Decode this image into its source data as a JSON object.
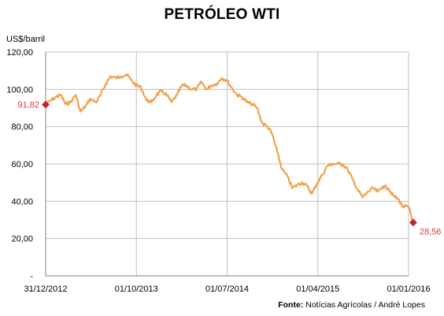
{
  "chart_data": {
    "type": "line",
    "title": "PETRÓLEO WTI",
    "ylabel": "US$/barril",
    "source_prefix": "Fonte:",
    "source_text": "Notícias Agrícolas / André Lopes",
    "ylim": [
      0,
      120
    ],
    "y_ticks": [
      "-",
      "20,00",
      "40,00",
      "60,00",
      "80,00",
      "100,00",
      "120,00"
    ],
    "x_ticks": [
      "31/12/2012",
      "01/10/2013",
      "01/07/2014",
      "01/04/2015",
      "01/01/2016"
    ],
    "grid": true,
    "series": [
      {
        "color": "#f4a04a",
        "x": [
          "2012-12-31",
          "2013-01-15",
          "2013-02-01",
          "2013-02-15",
          "2013-03-01",
          "2013-03-15",
          "2013-04-01",
          "2013-04-15",
          "2013-05-01",
          "2013-05-15",
          "2013-06-01",
          "2013-06-15",
          "2013-07-01",
          "2013-07-15",
          "2013-08-01",
          "2013-08-15",
          "2013-09-01",
          "2013-09-15",
          "2013-10-01",
          "2013-10-15",
          "2013-11-01",
          "2013-11-15",
          "2013-12-01",
          "2013-12-15",
          "2014-01-01",
          "2014-01-15",
          "2014-02-01",
          "2014-02-15",
          "2014-03-01",
          "2014-03-15",
          "2014-04-01",
          "2014-04-15",
          "2014-05-01",
          "2014-05-15",
          "2014-06-01",
          "2014-06-15",
          "2014-07-01",
          "2014-07-15",
          "2014-08-01",
          "2014-08-15",
          "2014-09-01",
          "2014-09-15",
          "2014-10-01",
          "2014-10-15",
          "2014-11-01",
          "2014-11-15",
          "2014-12-01",
          "2014-12-15",
          "2015-01-01",
          "2015-01-15",
          "2015-02-01",
          "2015-02-15",
          "2015-03-01",
          "2015-03-15",
          "2015-04-01",
          "2015-04-15",
          "2015-05-01",
          "2015-05-15",
          "2015-06-01",
          "2015-06-15",
          "2015-07-01",
          "2015-07-15",
          "2015-08-01",
          "2015-08-15",
          "2015-09-01",
          "2015-09-15",
          "2015-10-01",
          "2015-10-15",
          "2015-11-01",
          "2015-11-15",
          "2015-12-01",
          "2015-12-15",
          "2016-01-01",
          "2016-01-15"
        ],
        "y": [
          91.82,
          94,
          96,
          97,
          92,
          93,
          97,
          88,
          91,
          95,
          93,
          97,
          103,
          107,
          106,
          107,
          108,
          105,
          102,
          101,
          94,
          93,
          97,
          99,
          97,
          93,
          97,
          102,
          102,
          100,
          100,
          104,
          100,
          102,
          103,
          106,
          105,
          101,
          97,
          96,
          93,
          92,
          90,
          82,
          80,
          76,
          66,
          57,
          53,
          47,
          49,
          50,
          48,
          44,
          50,
          54,
          59,
          60,
          60,
          60,
          57,
          52,
          46,
          42,
          45,
          47,
          45,
          48,
          47,
          43,
          41,
          37,
          37,
          28.56
        ]
      }
    ],
    "annotations": [
      {
        "label": "91,82",
        "point": "first",
        "color": "#c0282d"
      },
      {
        "label": "28,56",
        "point": "last",
        "color": "#c0282d"
      }
    ]
  }
}
